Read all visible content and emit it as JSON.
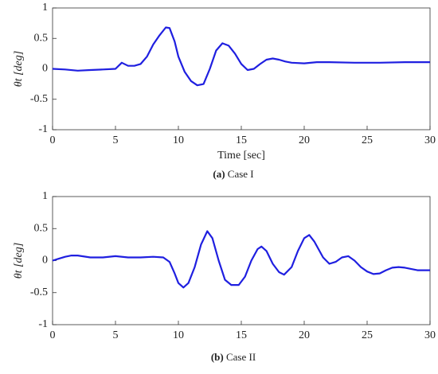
{
  "chart_data": [
    {
      "type": "line",
      "ylabel": "θt [deg]",
      "xlabel": "Time [sec]",
      "caption": {
        "tag": "(a)",
        "text": "Case I"
      },
      "color": "#1f1fe0",
      "xlim": [
        0,
        30
      ],
      "xticks": [
        0,
        5,
        10,
        15,
        20,
        25,
        30
      ],
      "ylim": [
        -1,
        1
      ],
      "yticks": [
        -1,
        -0.5,
        0,
        0.5,
        1
      ],
      "x": [
        0,
        1,
        2,
        3,
        4,
        5,
        5.5,
        6,
        6.5,
        7,
        7.5,
        8,
        8.5,
        9,
        9.3,
        9.7,
        10,
        10.5,
        11,
        11.5,
        12,
        12.5,
        13,
        13.5,
        14,
        14.5,
        15,
        15.5,
        16,
        16.5,
        17,
        17.5,
        18,
        18.5,
        19,
        20,
        21,
        22,
        24,
        26,
        28,
        30
      ],
      "values": [
        0,
        -0.01,
        -0.03,
        -0.02,
        -0.01,
        0,
        0.1,
        0.05,
        0.05,
        0.08,
        0.2,
        0.4,
        0.55,
        0.68,
        0.67,
        0.45,
        0.2,
        -0.05,
        -0.2,
        -0.27,
        -0.25,
        0,
        0.3,
        0.42,
        0.38,
        0.25,
        0.08,
        -0.02,
        0,
        0.08,
        0.15,
        0.17,
        0.15,
        0.12,
        0.1,
        0.09,
        0.11,
        0.11,
        0.1,
        0.1,
        0.11,
        0.11
      ]
    },
    {
      "type": "line",
      "ylabel": "θt [deg]",
      "caption": {
        "tag": "(b)",
        "text": "Case II"
      },
      "color": "#1f1fe0",
      "xlim": [
        0,
        30
      ],
      "xticks": [
        0,
        5,
        10,
        15,
        20,
        25,
        30
      ],
      "ylim": [
        -1,
        1
      ],
      "yticks": [
        -1,
        -0.5,
        0,
        0.5,
        1
      ],
      "x": [
        0,
        0.5,
        1,
        1.5,
        2,
        3,
        4,
        5,
        6,
        7,
        8,
        8.8,
        9.3,
        9.7,
        10,
        10.4,
        10.8,
        11.3,
        11.8,
        12.3,
        12.7,
        13.2,
        13.7,
        14.2,
        14.8,
        15.3,
        15.8,
        16.3,
        16.6,
        17,
        17.5,
        18,
        18.4,
        19,
        19.5,
        20,
        20.4,
        20.8,
        21.5,
        22,
        22.5,
        23,
        23.5,
        24,
        24.5,
        25,
        25.5,
        26,
        26.5,
        27,
        27.5,
        28,
        29,
        30
      ],
      "values": [
        0,
        0.03,
        0.06,
        0.08,
        0.08,
        0.05,
        0.05,
        0.07,
        0.05,
        0.05,
        0.06,
        0.05,
        -0.02,
        -0.2,
        -0.35,
        -0.42,
        -0.35,
        -0.1,
        0.25,
        0.46,
        0.35,
        0,
        -0.3,
        -0.38,
        -0.38,
        -0.25,
        0,
        0.18,
        0.22,
        0.15,
        -0.05,
        -0.18,
        -0.22,
        -0.1,
        0.15,
        0.35,
        0.4,
        0.3,
        0.05,
        -0.05,
        -0.02,
        0.05,
        0.07,
        0,
        -0.1,
        -0.17,
        -0.21,
        -0.2,
        -0.15,
        -0.11,
        -0.1,
        -0.11,
        -0.15,
        -0.15
      ]
    }
  ]
}
